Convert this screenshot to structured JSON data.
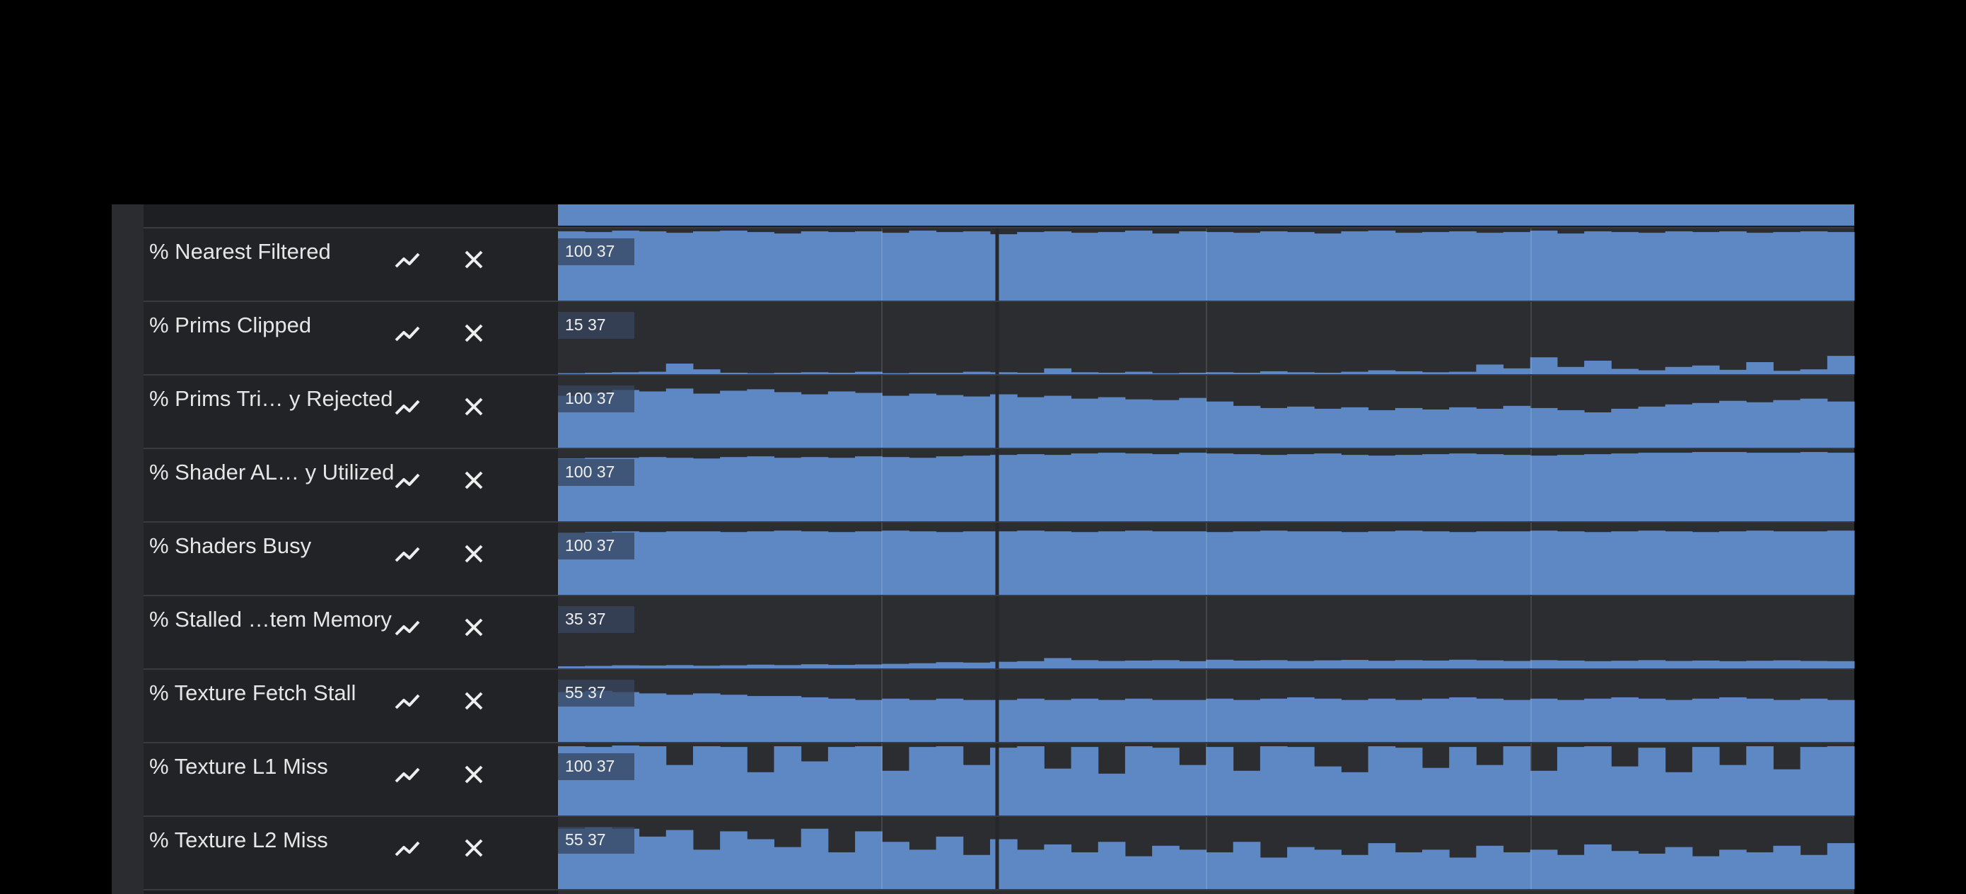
{
  "tracks": [
    {
      "label": "% Nearest Filtered",
      "range_label": "100 37",
      "ylim": [
        0,
        100
      ],
      "values": [
        96,
        95,
        97,
        96,
        94,
        96,
        97,
        95,
        93,
        96,
        95,
        96,
        94,
        97,
        95,
        96,
        92,
        95,
        96,
        94,
        95,
        97,
        93,
        96,
        95,
        94,
        96,
        95,
        93,
        96,
        97,
        94,
        95,
        96,
        94,
        95,
        97,
        93,
        96,
        95,
        94,
        96,
        95,
        96,
        94,
        95,
        96,
        95
      ]
    },
    {
      "label": "% Prims Clipped",
      "range_label": "15 37",
      "ylim": [
        0,
        15
      ],
      "values": [
        0.2,
        0.3,
        0.4,
        0.5,
        2.2,
        1.0,
        0.3,
        0.2,
        0.3,
        0.4,
        0.3,
        0.5,
        0.2,
        0.3,
        0.3,
        0.5,
        0.4,
        0.3,
        1.2,
        0.4,
        0.3,
        0.5,
        0.2,
        0.3,
        0.4,
        0.3,
        0.6,
        0.4,
        0.3,
        0.5,
        0.8,
        0.6,
        0.4,
        0.5,
        2.0,
        1.2,
        3.5,
        1.5,
        2.8,
        1.1,
        0.8,
        1.5,
        1.8,
        0.9,
        2.5,
        0.7,
        1.0,
        3.8
      ]
    },
    {
      "label": "% Prims Tri… y Rejected",
      "range_label": "100 37",
      "ylim": [
        0,
        100
      ],
      "values": [
        72,
        76,
        80,
        78,
        82,
        75,
        79,
        81,
        77,
        74,
        78,
        76,
        72,
        75,
        73,
        71,
        74,
        70,
        72,
        68,
        70,
        67,
        66,
        69,
        64,
        58,
        55,
        57,
        54,
        56,
        52,
        55,
        53,
        56,
        54,
        58,
        55,
        52,
        49,
        54,
        57,
        60,
        62,
        65,
        63,
        66,
        68,
        64
      ]
    },
    {
      "label": "% Shader AL… y Utilized",
      "range_label": "100 37",
      "ylim": [
        0,
        100
      ],
      "values": [
        87,
        88,
        88,
        89,
        88,
        87,
        89,
        90,
        88,
        89,
        88,
        90,
        89,
        88,
        90,
        91,
        92,
        93,
        92,
        94,
        95,
        94,
        93,
        95,
        94,
        93,
        92,
        93,
        94,
        92,
        91,
        92,
        93,
        94,
        93,
        92,
        91,
        92,
        93,
        94,
        95,
        95,
        96,
        96,
        95,
        95,
        96,
        95
      ]
    },
    {
      "label": "% Shaders Busy",
      "range_label": "100 37",
      "ylim": [
        0,
        100
      ],
      "values": [
        86,
        87,
        88,
        87,
        88,
        88,
        87,
        88,
        89,
        88,
        87,
        88,
        89,
        88,
        87,
        88,
        88,
        89,
        88,
        87,
        88,
        89,
        88,
        88,
        87,
        88,
        89,
        88,
        88,
        87,
        88,
        89,
        88,
        87,
        88,
        88,
        89,
        88,
        87,
        88,
        89,
        88,
        87,
        88,
        89,
        88,
        88,
        89
      ]
    },
    {
      "label": "% Stalled …tem Memory",
      "range_label": "35 37",
      "ylim": [
        0,
        35
      ],
      "values": [
        1,
        1.2,
        1.5,
        1.4,
        1.6,
        1.3,
        1.5,
        1.8,
        1.6,
        2,
        1.7,
        1.9,
        2.2,
        2.5,
        3,
        2.8,
        3.2,
        3.5,
        5,
        4,
        3.6,
        3.8,
        4,
        3.5,
        4.2,
        3.8,
        4,
        3.6,
        3.9,
        4.1,
        3.7,
        4,
        3.8,
        4.2,
        3.9,
        3.6,
        4,
        3.8,
        3.5,
        3.7,
        4,
        3.6,
        3.8,
        3.5,
        3.7,
        3.9,
        3.6,
        3.5
      ]
    },
    {
      "label": "% Texture Fetch Stall",
      "range_label": "55 37",
      "ylim": [
        0,
        55
      ],
      "values": [
        38,
        39,
        38,
        37,
        36,
        37,
        36,
        35,
        35,
        34,
        33,
        32,
        33,
        32,
        33,
        32,
        32,
        33,
        32,
        33,
        32,
        33,
        32,
        32,
        33,
        32,
        33,
        34,
        33,
        32,
        33,
        32,
        33,
        34,
        33,
        32,
        33,
        32,
        33,
        34,
        33,
        32,
        33,
        34,
        33,
        32,
        33,
        32
      ]
    },
    {
      "label": "% Texture L1 Miss",
      "range_label": "100 37",
      "ylim": [
        0,
        100
      ],
      "values": [
        96,
        95,
        97,
        96,
        70,
        96,
        95,
        60,
        96,
        75,
        95,
        96,
        62,
        95,
        96,
        70,
        94,
        96,
        65,
        95,
        58,
        96,
        94,
        70,
        95,
        62,
        96,
        95,
        68,
        60,
        96,
        94,
        66,
        95,
        70,
        96,
        62,
        95,
        96,
        68,
        94,
        60,
        95,
        70,
        96,
        64,
        95,
        96
      ]
    },
    {
      "label": "% Texture L2 Miss",
      "range_label": "55 37",
      "ylim": [
        0,
        55
      ],
      "values": [
        46,
        47,
        46,
        40,
        45,
        30,
        44,
        38,
        32,
        46,
        28,
        44,
        36,
        30,
        40,
        26,
        38,
        30,
        34,
        28,
        36,
        25,
        33,
        30,
        28,
        36,
        24,
        32,
        30,
        26,
        35,
        28,
        30,
        24,
        33,
        28,
        30,
        26,
        34,
        29,
        27,
        32,
        25,
        30,
        28,
        33,
        26,
        35
      ]
    }
  ]
}
